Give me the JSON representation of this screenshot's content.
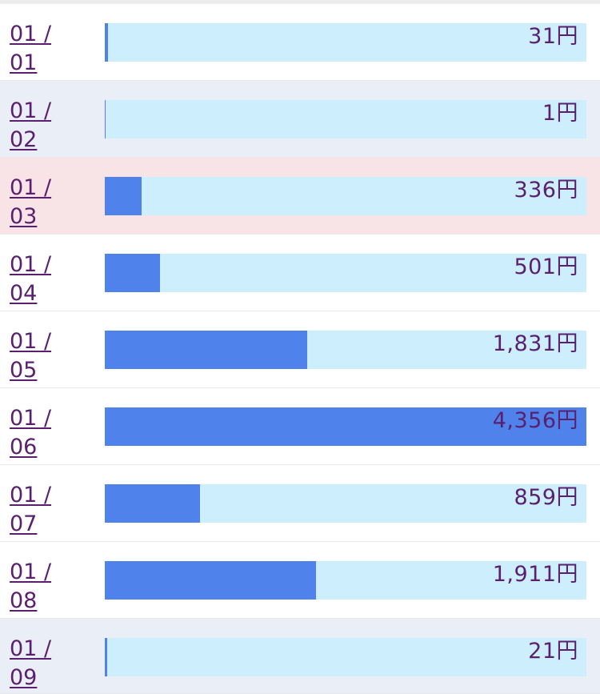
{
  "max_amount": 4356,
  "rows": [
    {
      "month": "01 /",
      "day": "01",
      "amount_label": "31円",
      "amount": 31,
      "kind": "normal"
    },
    {
      "month": "01 /",
      "day": "02",
      "amount_label": "1円",
      "amount": 1,
      "kind": "weekend"
    },
    {
      "month": "01 /",
      "day": "03",
      "amount_label": "336円",
      "amount": 336,
      "kind": "holiday"
    },
    {
      "month": "01 /",
      "day": "04",
      "amount_label": "501円",
      "amount": 501,
      "kind": "normal"
    },
    {
      "month": "01 /",
      "day": "05",
      "amount_label": "1,831円",
      "amount": 1831,
      "kind": "normal"
    },
    {
      "month": "01 /",
      "day": "06",
      "amount_label": "4,356円",
      "amount": 4356,
      "kind": "normal"
    },
    {
      "month": "01 /",
      "day": "07",
      "amount_label": "859円",
      "amount": 859,
      "kind": "normal"
    },
    {
      "month": "01 /",
      "day": "08",
      "amount_label": "1,911円",
      "amount": 1911,
      "kind": "normal"
    },
    {
      "month": "01 /",
      "day": "09",
      "amount_label": "21円",
      "amount": 21,
      "kind": "weekend"
    }
  ],
  "colors": {
    "bar_fill": "#4f83eb",
    "bar_track": "#cdeefc",
    "text": "#5a1f6e",
    "weekend_row": "#eaeef6",
    "holiday_row": "#f8e4e6"
  }
}
